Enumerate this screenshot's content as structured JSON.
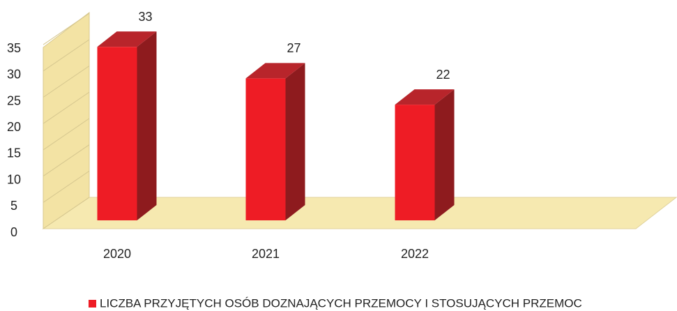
{
  "chart_data": {
    "type": "bar3d",
    "categories": [
      "2020",
      "2021",
      "2022"
    ],
    "series": [
      {
        "name": "LICZBA PRZYJĘTYCH OSÓB DOZNAJĄCYCH PRZEMOCY I STOSUJĄCYCH PRZEMOC",
        "color": "#ee1c25",
        "values": [
          33,
          27,
          22
        ]
      }
    ],
    "ylim": [
      0,
      40
    ],
    "yticks": [
      0,
      5,
      10,
      15,
      20,
      25,
      30,
      35
    ],
    "grid": true,
    "legend": "bottom"
  }
}
